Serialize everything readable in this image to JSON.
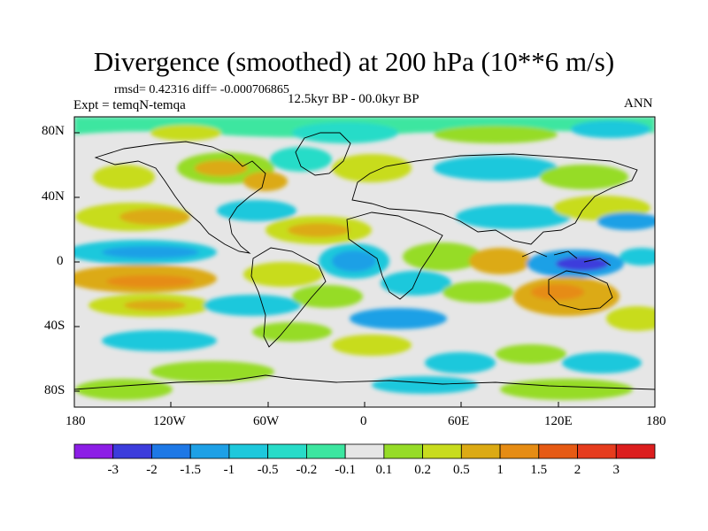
{
  "title": "Divergence (smoothed) at 200 hPa (10**6 m/s)",
  "stats": "rmsd= 0.42316 diff= -0.000706865",
  "experiment": "Expt = temqN-temqa",
  "period": "12.5kyr BP - 00.0kyr BP",
  "season": "ANN",
  "lat_labels": [
    "80N",
    "40N",
    "0",
    "40S",
    "80S"
  ],
  "lon_labels": [
    "180",
    "120W",
    "60W",
    "0",
    "60E",
    "120E",
    "180"
  ],
  "colorbar": {
    "labels": [
      "-3",
      "-2",
      "-1.5",
      "-1",
      "-0.5",
      "-0.2",
      "-0.1",
      "0.1",
      "0.2",
      "0.5",
      "1",
      "1.5",
      "2",
      "3"
    ],
    "colors": [
      "#8c1ee6",
      "#3c3cdc",
      "#1e78e6",
      "#1ea0e6",
      "#1ec8dc",
      "#28dcc8",
      "#3ce6a0",
      "#e6e6e6",
      "#96dc28",
      "#c8dc1e",
      "#dcaa14",
      "#e68c14",
      "#e65a14",
      "#e63c1e",
      "#dc1e1e"
    ]
  },
  "colors": {
    "background": "#e6e6e6",
    "coast": "#000000"
  }
}
